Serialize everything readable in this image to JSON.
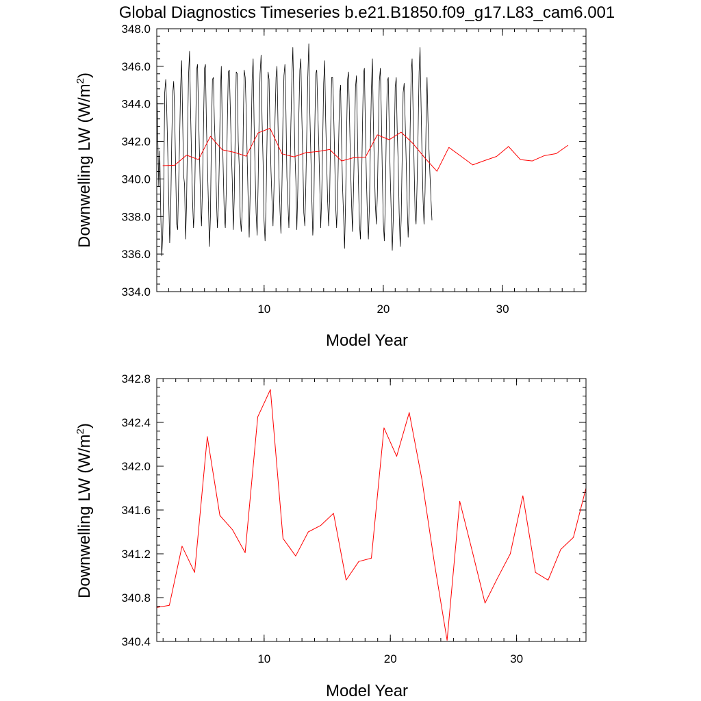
{
  "title": "Global Diagnostics Timeseries b.e21.B1850.f09_g17.L83_cam6.001",
  "chart_data": [
    {
      "type": "line",
      "xlabel": "Model Year",
      "ylabel": "Downwelling LW (W/m",
      "ylabel_sup": "2",
      "ylabel_close": ")",
      "xlim": [
        1,
        37
      ],
      "ylim": [
        334,
        348
      ],
      "xticks": [
        10,
        20,
        30
      ],
      "xtick_labels": [
        "10",
        "20",
        "30"
      ],
      "yticks": [
        334,
        336,
        338,
        340,
        342,
        344,
        346,
        348
      ],
      "ytick_labels": [
        "334.0",
        "336.0",
        "338.0",
        "340.0",
        "342.0",
        "344.0",
        "346.0",
        "348.0"
      ],
      "grid": false,
      "series": [
        {
          "kind": "monthly",
          "color": "#000000",
          "x_start": 1.0,
          "x_step": 0.0833333,
          "values": [
            345.3,
            342.2,
            339.6,
            341.5,
            338.2,
            335.9,
            337.0,
            339.7,
            344.6,
            345.3,
            343.8,
            341.5,
            339.0,
            336.6,
            338.1,
            341.9,
            344.5,
            345.2,
            343.6,
            340.5,
            337.6,
            337.3,
            339.7,
            342.1,
            344.9,
            346.3,
            343.4,
            340.2,
            339.7,
            336.8,
            338.6,
            342.5,
            345.5,
            346.8,
            343.8,
            341.1,
            338.9,
            337.4,
            338.6,
            342.0,
            345.8,
            346.1,
            343.6,
            341.3,
            338.8,
            337.5,
            339.6,
            342.7,
            345.9,
            346.1,
            342.8,
            340.8,
            338.6,
            336.4,
            338.0,
            342.2,
            345.3,
            345.4,
            343.0,
            341.6,
            339.1,
            337.4,
            338.5,
            341.0,
            344.5,
            346.0,
            342.5,
            340.3,
            338.0,
            337.4,
            339.5,
            342.8,
            345.7,
            345.8,
            343.8,
            341.6,
            339.9,
            337.3,
            339.0,
            342.8,
            345.7,
            345.6,
            342.0,
            340.6,
            338.0,
            337.2,
            338.3,
            342.7,
            345.8,
            345.4,
            343.7,
            341.1,
            338.9,
            336.9,
            339.2,
            342.2,
            345.3,
            346.4,
            342.9,
            340.4,
            338.2,
            337.0,
            339.6,
            343.3,
            345.6,
            346.6,
            343.2,
            340.9,
            337.8,
            336.7,
            338.8,
            342.2,
            345.7,
            345.3,
            342.5,
            340.4,
            338.8,
            337.5,
            339.6,
            343.1,
            345.4,
            346.0,
            342.9,
            340.2,
            338.3,
            337.1,
            339.7,
            343.2,
            345.5,
            346.1,
            343.6,
            340.1,
            338.7,
            337.4,
            339.8,
            342.9,
            345.4,
            347.0,
            344.1,
            341.5,
            339.9,
            337.3,
            339.5,
            343.3,
            345.8,
            346.4,
            343.3,
            341.0,
            338.2,
            337.5,
            339.6,
            342.6,
            345.4,
            347.2,
            343.7,
            341.4,
            339.1,
            337.0,
            338.0,
            342.6,
            345.6,
            345.8,
            343.8,
            341.9,
            339.8,
            337.4,
            339.0,
            342.0,
            345.1,
            346.3,
            343.2,
            340.9,
            338.8,
            337.5,
            338.9,
            342.6,
            345.4,
            345.4,
            343.7,
            341.3,
            338.7,
            337.4,
            339.0,
            341.8,
            344.5,
            345.0,
            341.9,
            339.6,
            338.0,
            336.3,
            338.7,
            342.2,
            345.3,
            345.7,
            343.2,
            340.8,
            338.7,
            337.2,
            339.4,
            342.0,
            344.9,
            345.5,
            342.3,
            339.8,
            337.6,
            336.8,
            339.2,
            342.6,
            345.6,
            345.9,
            342.6,
            340.1,
            338.0,
            336.8,
            338.5,
            341.7,
            344.8,
            346.4,
            343.0,
            340.6,
            338.6,
            337.6,
            339.1,
            342.2,
            345.2,
            345.9,
            343.6,
            340.2,
            337.7,
            336.7,
            338.7,
            342.5,
            345.2,
            345.4,
            342.6,
            340.1,
            338.2,
            336.2,
            337.8,
            341.6,
            344.9,
            345.4,
            342.6,
            340.8,
            338.2,
            336.4,
            337.8,
            341.2,
            344.6,
            345.1,
            343.2,
            341.0,
            338.8,
            336.9,
            338.5,
            342.6,
            345.6,
            346.4,
            343.4,
            340.7,
            338.1,
            337.6,
            339.8,
            342.4,
            345.7,
            347.0,
            343.9,
            341.2,
            338.9,
            337.6,
            339.3,
            342.7,
            345.4,
            343.1,
            341.5,
            340.2,
            338.9,
            337.8
          ]
        },
        {
          "kind": "annual",
          "color": "#ff0000",
          "x": [
            1.5,
            2.5,
            3.5,
            4.5,
            5.5,
            6.5,
            7.5,
            8.5,
            9.5,
            10.5,
            11.5,
            12.5,
            13.5,
            14.5,
            15.5,
            16.5,
            17.5,
            18.5,
            19.5,
            20.5,
            21.5,
            22.5,
            23.5,
            24.5,
            25.5,
            26.5,
            27.5,
            28.5,
            29.5,
            30.5,
            31.5,
            32.5,
            33.5,
            34.5,
            35.5
          ],
          "values": [
            340.71,
            340.73,
            341.27,
            341.03,
            342.27,
            341.55,
            341.42,
            341.21,
            342.45,
            342.7,
            341.34,
            341.18,
            341.4,
            341.46,
            341.57,
            340.96,
            341.13,
            341.16,
            342.35,
            342.09,
            342.49,
            341.88,
            341.11,
            340.41,
            341.68,
            341.22,
            340.75,
            340.98,
            341.2,
            341.73,
            341.03,
            340.96,
            341.24,
            341.35,
            341.8
          ]
        }
      ]
    },
    {
      "type": "line",
      "xlabel": "Model Year",
      "ylabel": "Downwelling LW (W/m",
      "ylabel_sup": "2",
      "ylabel_close": ")",
      "xlim": [
        1.5,
        35.5
      ],
      "ylim": [
        340.4,
        342.8
      ],
      "xticks": [
        10,
        20,
        30
      ],
      "xtick_labels": [
        "10",
        "20",
        "30"
      ],
      "yticks": [
        340.4,
        340.8,
        341.2,
        341.6,
        342.0,
        342.4,
        342.8
      ],
      "ytick_labels": [
        "340.4",
        "340.8",
        "341.2",
        "341.6",
        "342.0",
        "342.4",
        "342.8"
      ],
      "grid": false,
      "series": [
        {
          "kind": "annual",
          "color": "#ff0000",
          "x": [
            1.5,
            2.5,
            3.5,
            4.5,
            5.5,
            6.5,
            7.5,
            8.5,
            9.5,
            10.5,
            11.5,
            12.5,
            13.5,
            14.5,
            15.5,
            16.5,
            17.5,
            18.5,
            19.5,
            20.5,
            21.5,
            22.5,
            23.5,
            24.5,
            25.5,
            26.5,
            27.5,
            28.5,
            29.5,
            30.5,
            31.5,
            32.5,
            33.5,
            34.5,
            35.5
          ],
          "values": [
            340.71,
            340.73,
            341.27,
            341.03,
            342.27,
            341.55,
            341.42,
            341.21,
            342.45,
            342.7,
            341.34,
            341.18,
            341.4,
            341.46,
            341.57,
            340.96,
            341.13,
            341.16,
            342.35,
            342.09,
            342.49,
            341.88,
            341.11,
            340.41,
            341.68,
            341.22,
            340.75,
            340.98,
            341.2,
            341.73,
            341.03,
            340.96,
            341.24,
            341.35,
            341.8
          ]
        }
      ]
    }
  ]
}
